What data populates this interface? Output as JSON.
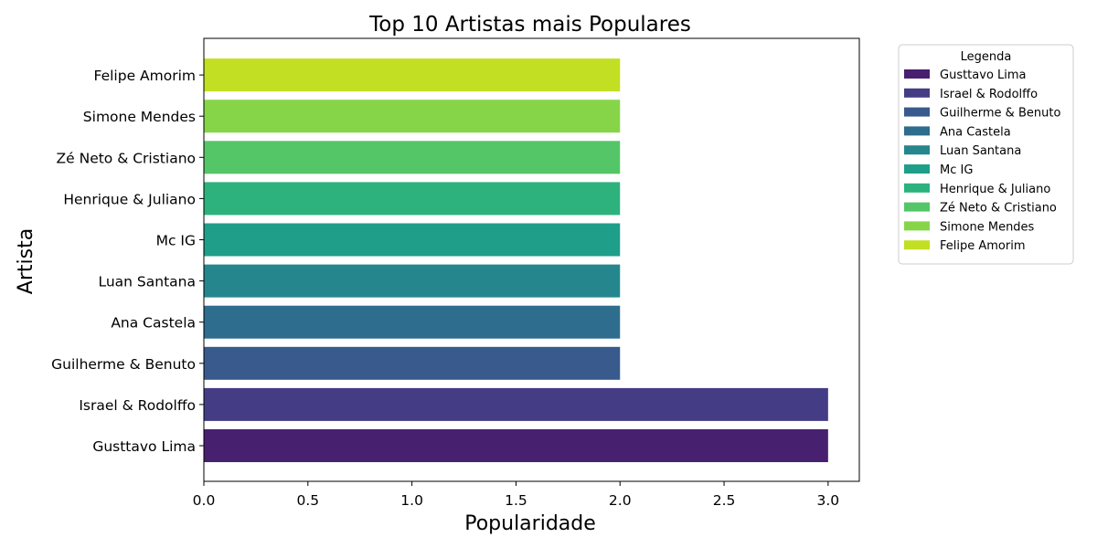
{
  "chart_data": {
    "type": "bar",
    "orientation": "horizontal",
    "title": "Top 10 Artistas mais Populares",
    "xlabel": "Popularidade",
    "ylabel": "Artista",
    "categories": [
      "Gusttavo Lima",
      "Israel & Rodolffo",
      "Guilherme & Benuto",
      "Ana Castela",
      "Luan Santana",
      "Mc IG",
      "Henrique & Juliano",
      "Zé Neto & Cristiano",
      "Simone Mendes",
      "Felipe Amorim"
    ],
    "values": [
      3,
      3,
      2,
      2,
      2,
      2,
      2,
      2,
      2,
      2
    ],
    "colors": [
      "#482070",
      "#443d85",
      "#385a8c",
      "#2e6d8e",
      "#25868e",
      "#1f9e89",
      "#2db27d",
      "#54c667",
      "#86d549",
      "#c2df23"
    ],
    "xlim": [
      0,
      3.15
    ],
    "xticks": [
      "0.0",
      "0.5",
      "1.0",
      "1.5",
      "2.0",
      "2.5",
      "3.0"
    ],
    "grid": false,
    "legend": {
      "title": "Legenda",
      "placement": "outside-right",
      "entries": [
        "Gusttavo Lima",
        "Israel & Rodolffo",
        "Guilherme & Benuto",
        "Ana Castela",
        "Luan Santana",
        "Mc IG",
        "Henrique & Juliano",
        "Zé Neto & Cristiano",
        "Simone Mendes",
        "Felipe Amorim"
      ]
    }
  }
}
